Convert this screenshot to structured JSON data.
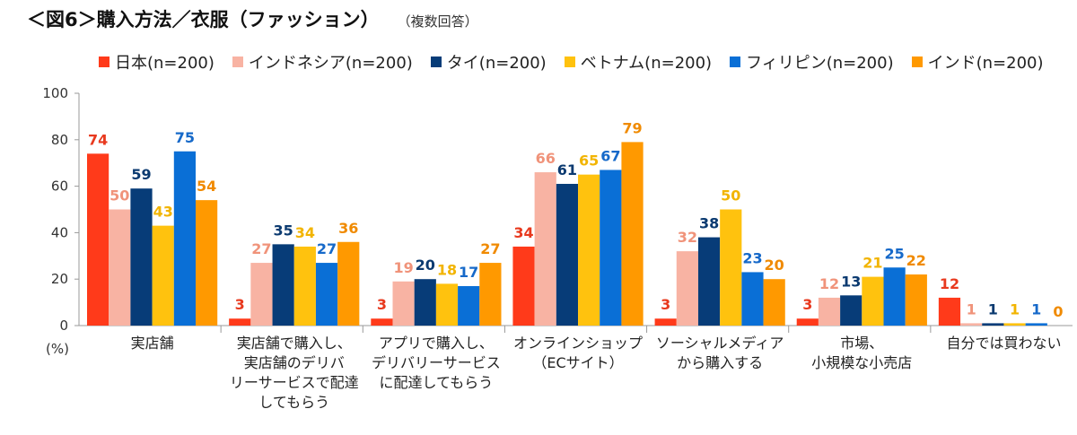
{
  "header": {
    "title": "＜図6＞購入方法／衣服（ファッション）",
    "subtitle": "（複数回答）"
  },
  "chart_data": {
    "type": "bar",
    "title": "＜図6＞購入方法／衣服（ファッション）",
    "subtitle": "（複数回答）",
    "ylabel": "(%)",
    "ylim": [
      0,
      100
    ],
    "yticks": [
      0,
      20,
      40,
      60,
      80,
      100
    ],
    "grid": false,
    "legend_position": "top",
    "categories": [
      [
        "実店舗"
      ],
      [
        "実店舗で購入し、",
        "実店舗のデリバ",
        "リーサービスで配達",
        "してもらう"
      ],
      [
        "アプリで購入し、",
        "デリバリーサービス",
        "に配達してもらう"
      ],
      [
        "オンラインショップ",
        "（ECサイト）"
      ],
      [
        "ソーシャルメディア",
        "から購入する"
      ],
      [
        "市場、",
        "小規模な小売店"
      ],
      [
        "自分では買わない"
      ]
    ],
    "series": [
      {
        "name": "日本(n=200)",
        "color": "#FF3A1A",
        "label_color": "#E8391E",
        "values": [
          74,
          3,
          3,
          34,
          3,
          3,
          12
        ]
      },
      {
        "name": "インドネシア(n=200)",
        "color": "#F8B3A3",
        "label_color": "#F0937A",
        "values": [
          50,
          27,
          19,
          66,
          32,
          12,
          1
        ]
      },
      {
        "name": "タイ(n=200)",
        "color": "#073C78",
        "label_color": "#0B3A70",
        "values": [
          59,
          35,
          20,
          61,
          38,
          13,
          1
        ]
      },
      {
        "name": "ベトナム(n=200)",
        "color": "#FFC20E",
        "label_color": "#F2B400",
        "values": [
          43,
          34,
          18,
          65,
          50,
          21,
          1
        ]
      },
      {
        "name": "フィリピン(n=200)",
        "color": "#0A6FD6",
        "label_color": "#1669C9",
        "values": [
          75,
          27,
          17,
          67,
          23,
          25,
          1
        ]
      },
      {
        "name": "インド(n=200)",
        "color": "#FF9900",
        "label_color": "#F08A00",
        "values": [
          54,
          36,
          27,
          79,
          20,
          22,
          0
        ]
      }
    ]
  }
}
